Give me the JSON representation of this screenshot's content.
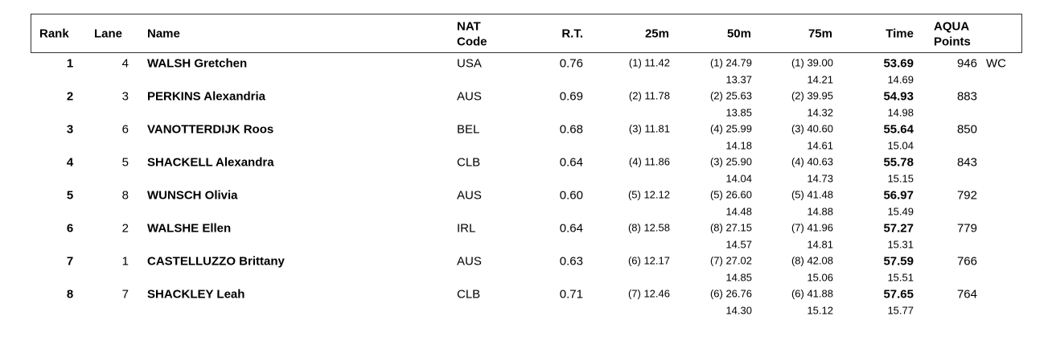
{
  "header": {
    "columns": {
      "rank": "Rank",
      "lane": "Lane",
      "name": "Name",
      "nat": [
        "NAT",
        "Code"
      ],
      "rt": "R.T.",
      "s25": "25m",
      "s50": "50m",
      "s75": "75m",
      "time": "Time",
      "points": [
        "AQUA",
        "Points"
      ]
    }
  },
  "table": {
    "rows": [
      {
        "rank": "1",
        "lane": "4",
        "name": "WALSH Gretchen",
        "nat": "USA",
        "rt": "0.76",
        "s25": "(1) 11.42",
        "s50": "(1) 24.79",
        "s75": "(1) 39.00",
        "time": "53.69",
        "points": "946",
        "note": "WC",
        "split50": "13.37",
        "split75": "14.21",
        "splitTime": "14.69"
      },
      {
        "rank": "2",
        "lane": "3",
        "name": "PERKINS Alexandria",
        "nat": "AUS",
        "rt": "0.69",
        "s25": "(2) 11.78",
        "s50": "(2) 25.63",
        "s75": "(2) 39.95",
        "time": "54.93",
        "points": "883",
        "split50": "13.85",
        "split75": "14.32",
        "splitTime": "14.98"
      },
      {
        "rank": "3",
        "lane": "6",
        "name": "VANOTTERDIJK Roos",
        "nat": "BEL",
        "rt": "0.68",
        "s25": "(3) 11.81",
        "s50": "(4) 25.99",
        "s75": "(3) 40.60",
        "time": "55.64",
        "points": "850",
        "split50": "14.18",
        "split75": "14.61",
        "splitTime": "15.04"
      },
      {
        "rank": "4",
        "lane": "5",
        "name": "SHACKELL Alexandra",
        "nat": "CLB",
        "rt": "0.64",
        "s25": "(4) 11.86",
        "s50": "(3) 25.90",
        "s75": "(4) 40.63",
        "time": "55.78",
        "points": "843",
        "split50": "14.04",
        "split75": "14.73",
        "splitTime": "15.15"
      },
      {
        "rank": "5",
        "lane": "8",
        "name": "WUNSCH Olivia",
        "nat": "AUS",
        "rt": "0.60",
        "s25": "(5) 12.12",
        "s50": "(5) 26.60",
        "s75": "(5) 41.48",
        "time": "56.97",
        "points": "792",
        "split50": "14.48",
        "split75": "14.88",
        "splitTime": "15.49"
      },
      {
        "rank": "6",
        "lane": "2",
        "name": "WALSHE Ellen",
        "nat": "IRL",
        "rt": "0.64",
        "s25": "(8) 12.58",
        "s50": "(8) 27.15",
        "s75": "(7) 41.96",
        "time": "57.27",
        "points": "779",
        "split50": "14.57",
        "split75": "14.81",
        "splitTime": "15.31"
      },
      {
        "rank": "7",
        "lane": "1",
        "name": "CASTELLUZZO Brittany",
        "nat": "AUS",
        "rt": "0.63",
        "s25": "(6) 12.17",
        "s50": "(7) 27.02",
        "s75": "(8) 42.08",
        "time": "57.59",
        "points": "766",
        "split50": "14.85",
        "split75": "15.06",
        "splitTime": "15.51"
      },
      {
        "rank": "8",
        "lane": "7",
        "name": "SHACKLEY Leah",
        "nat": "CLB",
        "rt": "0.71",
        "s25": "(7) 12.46",
        "s50": "(6) 26.76",
        "s75": "(6) 41.88",
        "time": "57.65",
        "points": "764",
        "split50": "14.30",
        "split75": "15.12",
        "splitTime": "15.77"
      }
    ]
  }
}
